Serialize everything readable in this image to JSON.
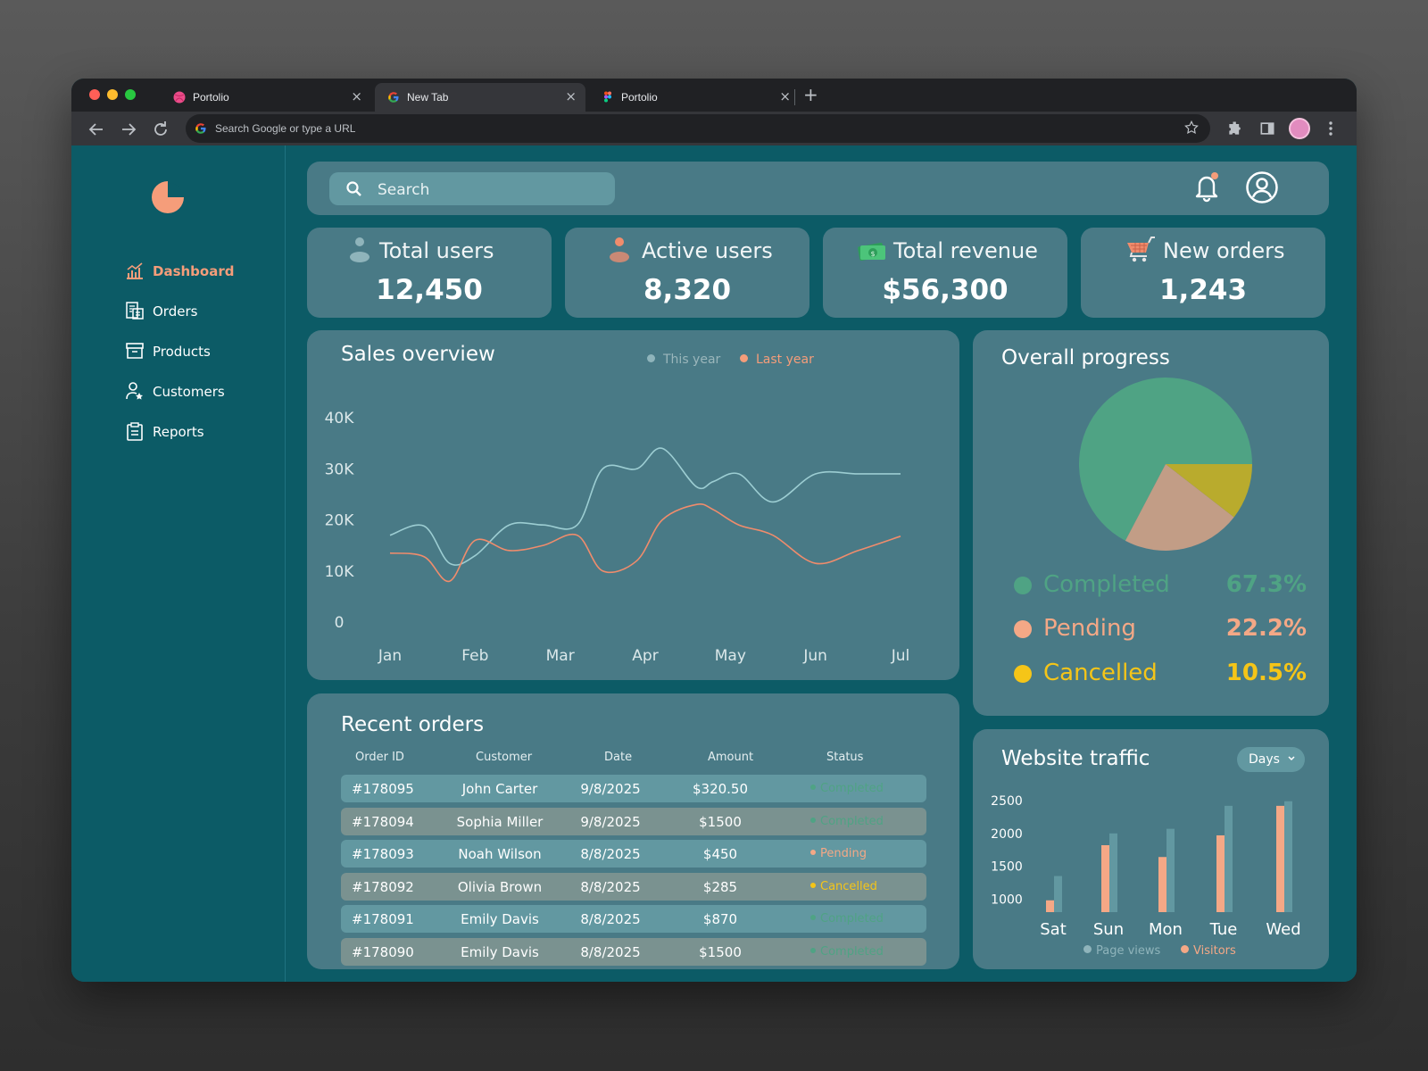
{
  "browser": {
    "tabs": [
      {
        "title": "Portolio",
        "icon": "dribbble-icon"
      },
      {
        "title": "New Tab",
        "icon": "google-icon"
      },
      {
        "title": "Portolio",
        "icon": "figma-icon"
      }
    ],
    "omnibox_placeholder": "Search Google or type a URL"
  },
  "sidebar": {
    "items": [
      {
        "label": "Dashboard",
        "icon": "chart-icon",
        "active": true
      },
      {
        "label": "Orders",
        "icon": "orders-icon"
      },
      {
        "label": "Products",
        "icon": "box-icon"
      },
      {
        "label": "Customers",
        "icon": "customers-icon"
      },
      {
        "label": "Reports",
        "icon": "clipboard-icon"
      }
    ]
  },
  "header": {
    "search_placeholder": "Search"
  },
  "stats": [
    {
      "label": "Total users",
      "value": "12,450",
      "icon": "user-icon"
    },
    {
      "label": "Active users",
      "value": "8,320",
      "icon": "active-user-icon"
    },
    {
      "label": "Total revenue",
      "value": "$56,300",
      "icon": "money-icon"
    },
    {
      "label": "New orders",
      "value": "1,243",
      "icon": "cart-icon"
    }
  ],
  "sales_overview": {
    "title": "Sales overview",
    "legend": {
      "this_year": "This year",
      "last_year": "Last year"
    }
  },
  "recent_orders": {
    "title": "Recent orders",
    "columns": [
      "Order ID",
      "Customer",
      "Date",
      "Amount",
      "Status"
    ],
    "rows": [
      {
        "id": "#178095",
        "customer": "John Carter",
        "date": "9/8/2025",
        "amount": "$320.50",
        "status": "Completed"
      },
      {
        "id": "#178094",
        "customer": "Sophia Miller",
        "date": "9/8/2025",
        "amount": "$1500",
        "status": "Completed"
      },
      {
        "id": "#178093",
        "customer": "Noah Wilson",
        "date": "8/8/2025",
        "amount": "$450",
        "status": "Pending"
      },
      {
        "id": "#178092",
        "customer": "Olivia Brown",
        "date": "8/8/2025",
        "amount": "$285",
        "status": "Cancelled"
      },
      {
        "id": "#178091",
        "customer": "Emily Davis",
        "date": "8/8/2025",
        "amount": "$870",
        "status": "Completed"
      },
      {
        "id": "#178090",
        "customer": "Emily Davis",
        "date": "8/8/2025",
        "amount": "$1500",
        "status": "Completed"
      }
    ]
  },
  "overall_progress": {
    "title": "Overall progress",
    "items": [
      {
        "label": "Completed",
        "value": "67.3%",
        "color": "#4fa384"
      },
      {
        "label": "Pending",
        "value": "22.2%",
        "color": "#f4a886"
      },
      {
        "label": "Cancelled",
        "value": "10.5%",
        "color": "#f5c518"
      }
    ]
  },
  "website_traffic": {
    "title": "Website traffic",
    "range": "Days",
    "legend": {
      "page_views": "Page views",
      "visitors": "Visitors"
    }
  },
  "colors": {
    "accent": "#f59d7a",
    "completed": "#4fa384",
    "pending": "#f4a886",
    "cancelled": "#f5c518",
    "this_year_line": "#9ccdd2",
    "last_year_line": "#f08c6c"
  },
  "chart_data": [
    {
      "type": "line",
      "title": "Sales overview",
      "categories": [
        "Jan",
        "Feb",
        "Mar",
        "Apr",
        "May",
        "Jun",
        "Jul"
      ],
      "x": [
        1,
        1.4,
        1.7,
        2,
        2.4,
        2.8,
        3.2,
        3.5,
        3.9,
        4.2,
        4.6,
        4.8,
        5.1,
        5.5,
        6,
        6.5,
        7
      ],
      "yticks": [
        "0",
        "10K",
        "20K",
        "30K",
        "40K"
      ],
      "ylim": [
        0,
        40000
      ],
      "series": [
        {
          "name": "This year",
          "color": "#9ccdd2",
          "values": [
            17000,
            18800,
            11500,
            13000,
            19000,
            19000,
            19000,
            30000,
            30000,
            34000,
            26500,
            27500,
            29000,
            23500,
            29000,
            29000,
            29000
          ]
        },
        {
          "name": "Last year",
          "color": "#f08c6c",
          "values": [
            13500,
            12800,
            8000,
            16000,
            14000,
            15000,
            17000,
            10000,
            12000,
            20000,
            23000,
            22000,
            19000,
            17000,
            11500,
            14000,
            16800
          ]
        }
      ]
    },
    {
      "type": "pie",
      "title": "Overall progress",
      "categories": [
        "Completed",
        "Pending",
        "Cancelled"
      ],
      "values": [
        67.3,
        22.2,
        10.5
      ],
      "colors": [
        "#4fa384",
        "#c29d86",
        "#b9ab2d"
      ]
    },
    {
      "type": "bar",
      "title": "Website traffic",
      "categories": [
        "Sat",
        "Sun",
        "Mon",
        "Tue",
        "Wed"
      ],
      "yticks": [
        "1000",
        "1500",
        "2000",
        "2500"
      ],
      "ylim": [
        800,
        2500
      ],
      "series": [
        {
          "name": "Page views",
          "color": "#6298a1",
          "values": [
            1350,
            2000,
            2070,
            2420,
            2490
          ]
        },
        {
          "name": "Visitors",
          "color": "#f4a886",
          "values": [
            980,
            1820,
            1640,
            1970,
            2420
          ]
        }
      ]
    }
  ]
}
